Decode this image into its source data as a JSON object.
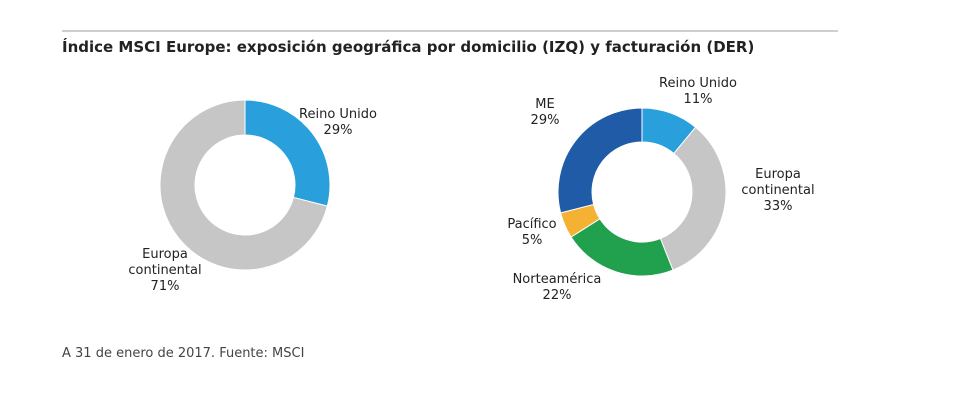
{
  "header": {
    "title": "Índice MSCI Europe: exposición geográfica por domicilio (IZQ) y facturación (DER)"
  },
  "footer": {
    "source": "A 31 de enero de 2017. Fuente: MSCI"
  },
  "chart_data": [
    {
      "type": "pie",
      "title": "",
      "slices": [
        {
          "label_lines": [
            "Reino Unido",
            "29%"
          ],
          "value": 29,
          "color": "#29a0dc"
        },
        {
          "label_lines": [
            "Europa",
            "continental",
            "71%"
          ],
          "value": 71,
          "color": "#c6c6c6"
        }
      ]
    },
    {
      "type": "pie",
      "title": "",
      "slices": [
        {
          "label_lines": [
            "Reino Unido",
            "11%"
          ],
          "value": 11,
          "color": "#29a0dc"
        },
        {
          "label_lines": [
            "Europa",
            "continental",
            "33%"
          ],
          "value": 33,
          "color": "#c6c6c6"
        },
        {
          "label_lines": [
            "Norteamérica",
            "22%"
          ],
          "value": 22,
          "color": "#21a04e"
        },
        {
          "label_lines": [
            "Pacífico",
            "5%"
          ],
          "value": 5,
          "color": "#f4b132"
        },
        {
          "label_lines": [
            "ME",
            "29%"
          ],
          "value": 29,
          "color": "#1f5ba6"
        }
      ]
    }
  ]
}
